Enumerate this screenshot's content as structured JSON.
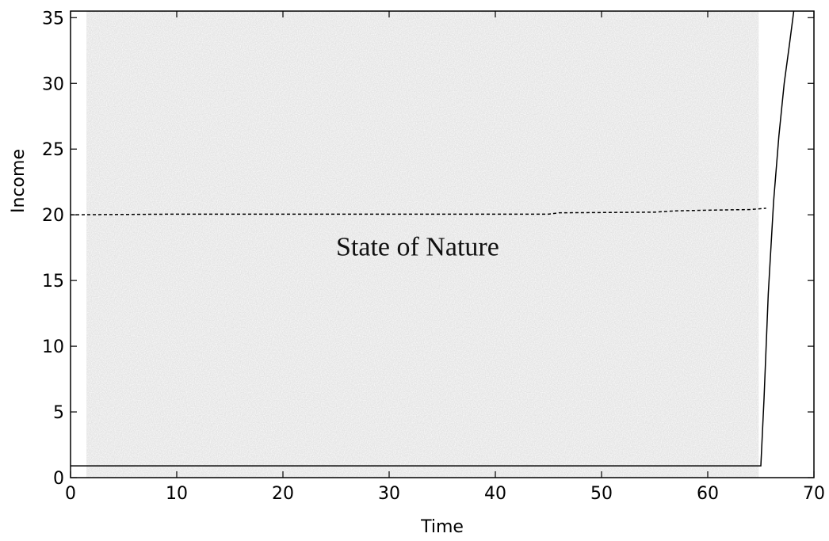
{
  "chart_data": {
    "type": "line",
    "title": "",
    "xlabel": "Time",
    "ylabel": "Income",
    "xlim": [
      0,
      70
    ],
    "ylim": [
      0,
      35.5
    ],
    "x_ticks": [
      0,
      10,
      20,
      30,
      40,
      50,
      60,
      70
    ],
    "y_ticks": [
      0,
      5,
      10,
      15,
      20,
      25,
      30,
      35
    ],
    "grid": false,
    "legend": "none",
    "shaded_region": {
      "x": [
        1.5,
        64.8
      ],
      "y": [
        0,
        35.5
      ],
      "color": "#e4e4e4"
    },
    "annotation": "State of Nature",
    "annotation_at": [
      25,
      16.9
    ],
    "series": [
      {
        "style": "solid",
        "color": "#000000",
        "x": [
          0,
          65,
          65.3,
          65.7,
          66.2,
          66.7,
          67.2,
          67.7,
          68.1
        ],
        "y": [
          0.9,
          0.9,
          6,
          14,
          21,
          26,
          30,
          33,
          35.5
        ]
      },
      {
        "style": "dashed",
        "color": "#000000",
        "x": [
          0,
          10,
          20,
          30,
          40,
          45,
          46,
          55,
          57,
          60,
          64,
          65.5
        ],
        "y": [
          20.0,
          20.05,
          20.05,
          20.05,
          20.05,
          20.05,
          20.15,
          20.2,
          20.3,
          20.35,
          20.4,
          20.5
        ]
      }
    ]
  }
}
